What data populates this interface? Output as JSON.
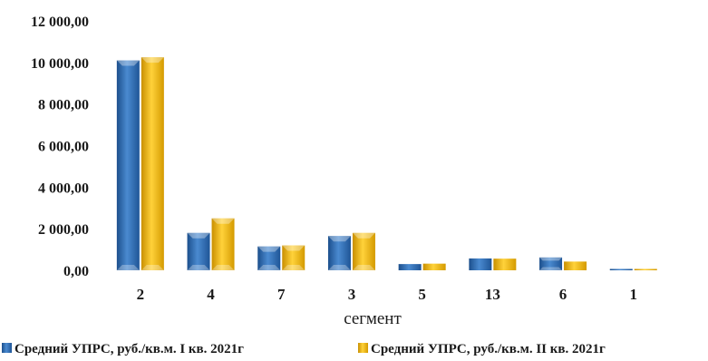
{
  "chart_data": {
    "type": "bar",
    "categories": [
      "2",
      "4",
      "7",
      "3",
      "5",
      "13",
      "6",
      "1"
    ],
    "series": [
      {
        "name": "Средний УПРС, руб./кв.м. I кв. 2021г",
        "values": [
          10100,
          1800,
          1150,
          1650,
          300,
          570,
          620,
          30
        ],
        "color": "#2E6DB4"
      },
      {
        "name": "Средний УПРС, руб./кв.м. II кв. 2021г",
        "values": [
          10250,
          2500,
          1200,
          1800,
          320,
          560,
          420,
          30
        ],
        "color": "#F2B705"
      }
    ],
    "yticks": [
      "0,00",
      "2 000,00",
      "4 000,00",
      "6 000,00",
      "8 000,00",
      "10 000,00",
      "12 000,00"
    ],
    "ylim": [
      0,
      12000
    ],
    "xlabel": "сегмент",
    "grid": false,
    "legend": "bottom"
  }
}
